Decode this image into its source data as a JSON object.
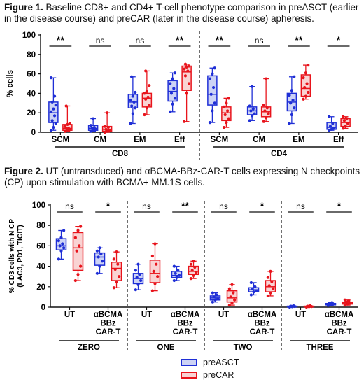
{
  "captions": {
    "fig1_label": "Figure 1.",
    "fig1_text": " Baseline CD8+ and CD4+ T-cell phenotype comparison in preASCT (earlier in the disease course) and preCAR (later in the disease course) apheresis.",
    "fig2_label": "Figure 2.",
    "fig2_text": " UT (untransduced) and αBCMA-BBz-CAR-T cells expressing N checkpoints (CP) upon stimulation with BCMA+ MM.1S cells."
  },
  "colors": {
    "preASCT_stroke": "#1f2fd6",
    "preASCT_fill": "#cdd3f5",
    "preCAR_stroke": "#e8141c",
    "preCAR_fill": "#f9d3d3"
  },
  "legend": [
    {
      "name": "preASCT",
      "key": "preASCT"
    },
    {
      "name": "preCAR",
      "key": "preCAR"
    }
  ],
  "chart_data": [
    {
      "type": "box",
      "ylabel": "% cells",
      "ylim": [
        0,
        100
      ],
      "yticks": [
        0,
        20,
        40,
        60,
        80,
        100
      ],
      "groups": [
        {
          "name": "CD8",
          "categories": [
            {
              "label": "SCM",
              "sig": "**",
              "preASCT": {
                "min": 2,
                "q1": 10,
                "median": 20,
                "q3": 31,
                "max": 56,
                "points": [
                  2,
                  5,
                  9,
                  12,
                  17,
                  21,
                  24,
                  28,
                  31,
                  37,
                  56
                ]
              },
              "preCAR": {
                "min": 1,
                "q1": 2,
                "median": 4,
                "q3": 8,
                "max": 27,
                "points": [
                  1,
                  2,
                  3,
                  4,
                  4,
                  6,
                  8,
                  9,
                  27
                ]
              }
            },
            {
              "label": "CM",
              "sig": "ns",
              "preASCT": {
                "min": 1,
                "q1": 2,
                "median": 4,
                "q3": 7,
                "max": 14,
                "points": [
                  1,
                  2,
                  3,
                  4,
                  5,
                  7,
                  14
                ]
              },
              "preCAR": {
                "min": 0,
                "q1": 1,
                "median": 3,
                "q3": 6,
                "max": 20,
                "points": [
                  0,
                  1,
                  2,
                  3,
                  5,
                  6,
                  20
                ]
              }
            },
            {
              "label": "EM",
              "sig": "ns",
              "preASCT": {
                "min": 9,
                "q1": 25,
                "median": 31,
                "q3": 39,
                "max": 57,
                "points": [
                  9,
                  19,
                  25,
                  27,
                  31,
                  33,
                  37,
                  41,
                  57
                ]
              },
              "preCAR": {
                "min": 18,
                "q1": 26,
                "median": 35,
                "q3": 40,
                "max": 63,
                "points": [
                  18,
                  25,
                  28,
                  34,
                  36,
                  40,
                  42,
                  48,
                  63
                ]
              }
            },
            {
              "label": "Eff",
              "sig": "**",
              "preASCT": {
                "min": 21,
                "q1": 32,
                "median": 42,
                "q3": 53,
                "max": 61,
                "points": [
                  21,
                  29,
                  35,
                  40,
                  45,
                  50,
                  55,
                  61
                ]
              },
              "preCAR": {
                "min": 11,
                "q1": 43,
                "median": 62,
                "q3": 68,
                "max": 70,
                "points": [
                  11,
                  40,
                  50,
                  58,
                  63,
                  65,
                  67,
                  68,
                  70
                ]
              }
            }
          ]
        },
        {
          "name": "CD4",
          "categories": [
            {
              "label": "SCM",
              "sig": "**",
              "preASCT": {
                "min": 10,
                "q1": 28,
                "median": 39,
                "q3": 58,
                "max": 66,
                "points": [
                  10,
                  22,
                  30,
                  39,
                  46,
                  55,
                  60,
                  66
                ]
              },
              "preCAR": {
                "min": 5,
                "q1": 12,
                "median": 20,
                "q3": 26,
                "max": 35,
                "points": [
                  5,
                  10,
                  14,
                  18,
                  22,
                  26,
                  30,
                  35
                ]
              }
            },
            {
              "label": "CM",
              "sig": "ns",
              "preASCT": {
                "min": 12,
                "q1": 18,
                "median": 22,
                "q3": 26,
                "max": 47,
                "points": [
                  12,
                  17,
                  19,
                  22,
                  24,
                  27,
                  47
                ]
              },
              "preCAR": {
                "min": 11,
                "q1": 16,
                "median": 21,
                "q3": 26,
                "max": 55,
                "points": [
                  11,
                  15,
                  19,
                  22,
                  25,
                  28,
                  55
                ]
              }
            },
            {
              "label": "EM",
              "sig": "**",
              "preASCT": {
                "min": 9,
                "q1": 22,
                "median": 31,
                "q3": 40,
                "max": 57,
                "points": [
                  9,
                  18,
                  25,
                  30,
                  33,
                  38,
                  43,
                  57
                ]
              },
              "preCAR": {
                "min": 34,
                "q1": 37,
                "median": 45,
                "q3": 59,
                "max": 69,
                "points": [
                  34,
                  37,
                  41,
                  46,
                  50,
                  56,
                  61,
                  69
                ]
              }
            },
            {
              "label": "Eff",
              "sig": "*",
              "preASCT": {
                "min": 2,
                "q1": 3,
                "median": 5,
                "q3": 10,
                "max": 16,
                "points": [
                  2,
                  3,
                  4,
                  6,
                  9,
                  16
                ]
              },
              "preCAR": {
                "min": 4,
                "q1": 6,
                "median": 10,
                "q3": 14,
                "max": 16,
                "points": [
                  4,
                  6,
                  9,
                  12,
                  14,
                  16
                ]
              }
            }
          ]
        }
      ]
    },
    {
      "type": "box",
      "ylabel_line1": "% CD3 cells with N CP",
      "ylabel_line2": "(LAG3, PD1, TIGIT)",
      "ylim": [
        0,
        100
      ],
      "yticks": [
        0,
        20,
        40,
        60,
        80,
        100
      ],
      "groups": [
        {
          "name": "ZERO",
          "categories": [
            {
              "label": [
                "UT"
              ],
              "sig": "ns",
              "preASCT": {
                "min": 47,
                "q1": 56,
                "median": 60,
                "q3": 67,
                "max": 75,
                "points": [
                  47,
                  55,
                  58,
                  60,
                  62,
                  65,
                  68,
                  75
                ]
              },
              "preCAR": {
                "min": 26,
                "q1": 36,
                "median": 58,
                "q3": 73,
                "max": 79,
                "points": [
                  26,
                  32,
                  40,
                  55,
                  60,
                  68,
                  75,
                  79
                ]
              }
            },
            {
              "label": [
                "αBCMA",
                "BBz",
                "CAR-T"
              ],
              "sig": "*",
              "preASCT": {
                "min": 33,
                "q1": 41,
                "median": 49,
                "q3": 53,
                "max": 58,
                "points": [
                  33,
                  40,
                  45,
                  49,
                  52,
                  55,
                  58
                ]
              },
              "preCAR": {
                "min": 19,
                "q1": 26,
                "median": 38,
                "q3": 44,
                "max": 54,
                "points": [
                  19,
                  25,
                  30,
                  37,
                  42,
                  47,
                  54
                ]
              }
            }
          ]
        },
        {
          "name": "ONE",
          "categories": [
            {
              "label": [
                "UT"
              ],
              "sig": "ns",
              "preASCT": {
                "min": 17,
                "q1": 23,
                "median": 28,
                "q3": 33,
                "max": 42,
                "points": [
                  17,
                  22,
                  26,
                  29,
                  32,
                  36,
                  42
                ]
              },
              "preCAR": {
                "min": 16,
                "q1": 24,
                "median": 33,
                "q3": 46,
                "max": 62,
                "points": [
                  16,
                  23,
                  30,
                  35,
                  42,
                  50,
                  62
                ]
              }
            },
            {
              "label": [
                "αBCMA",
                "BBz",
                "CAR-T"
              ],
              "sig": "**",
              "preASCT": {
                "min": 26,
                "q1": 29,
                "median": 31,
                "q3": 35,
                "max": 40,
                "points": [
                  26,
                  29,
                  31,
                  33,
                  36,
                  40
                ]
              },
              "preCAR": {
                "min": 28,
                "q1": 32,
                "median": 35,
                "q3": 40,
                "max": 45,
                "points": [
                  28,
                  31,
                  34,
                  36,
                  39,
                  42,
                  45
                ]
              }
            }
          ]
        },
        {
          "name": "TWO",
          "categories": [
            {
              "label": [
                "UT"
              ],
              "sig": "ns",
              "preASCT": {
                "min": 5,
                "q1": 7,
                "median": 9,
                "q3": 11,
                "max": 14,
                "points": [
                  5,
                  7,
                  8,
                  10,
                  12,
                  14
                ]
              },
              "preCAR": {
                "min": 2,
                "q1": 5,
                "median": 9,
                "q3": 16,
                "max": 22,
                "points": [
                  2,
                  4,
                  7,
                  10,
                  14,
                  18,
                  22
                ]
              }
            },
            {
              "label": [
                "αBCMA",
                "BBz",
                "CAR-T"
              ],
              "sig": "*",
              "preASCT": {
                "min": 12,
                "q1": 15,
                "median": 17,
                "q3": 19,
                "max": 24,
                "points": [
                  12,
                  15,
                  16,
                  18,
                  20,
                  24
                ]
              },
              "preCAR": {
                "min": 11,
                "q1": 15,
                "median": 20,
                "q3": 26,
                "max": 35,
                "points": [
                  11,
                  14,
                  18,
                  21,
                  25,
                  29,
                  35
                ]
              }
            }
          ]
        },
        {
          "name": "THREE",
          "categories": [
            {
              "label": [
                "UT"
              ],
              "sig": "ns",
              "preASCT": {
                "min": 0,
                "q1": 0.3,
                "median": 0.6,
                "q3": 1,
                "max": 1.5,
                "points": [
                  0,
                  0.4,
                  0.7,
                  1,
                  1.5
                ]
              },
              "preCAR": {
                "min": 0,
                "q1": 0.3,
                "median": 0.5,
                "q3": 1,
                "max": 1.5,
                "points": [
                  0,
                  0.4,
                  0.6,
                  1,
                  1.4
                ]
              }
            },
            {
              "label": [
                "αBCMA",
                "BBz",
                "CAR-T"
              ],
              "sig": "*",
              "preASCT": {
                "min": 1.5,
                "q1": 2.2,
                "median": 3,
                "q3": 3.6,
                "max": 4.5,
                "points": [
                  1.5,
                  2.3,
                  3,
                  3.5,
                  4.5
                ]
              },
              "preCAR": {
                "min": 2,
                "q1": 3,
                "median": 4,
                "q3": 5,
                "max": 7,
                "points": [
                  2,
                  3,
                  4,
                  5,
                  6,
                  7
                ]
              }
            }
          ]
        }
      ]
    }
  ]
}
